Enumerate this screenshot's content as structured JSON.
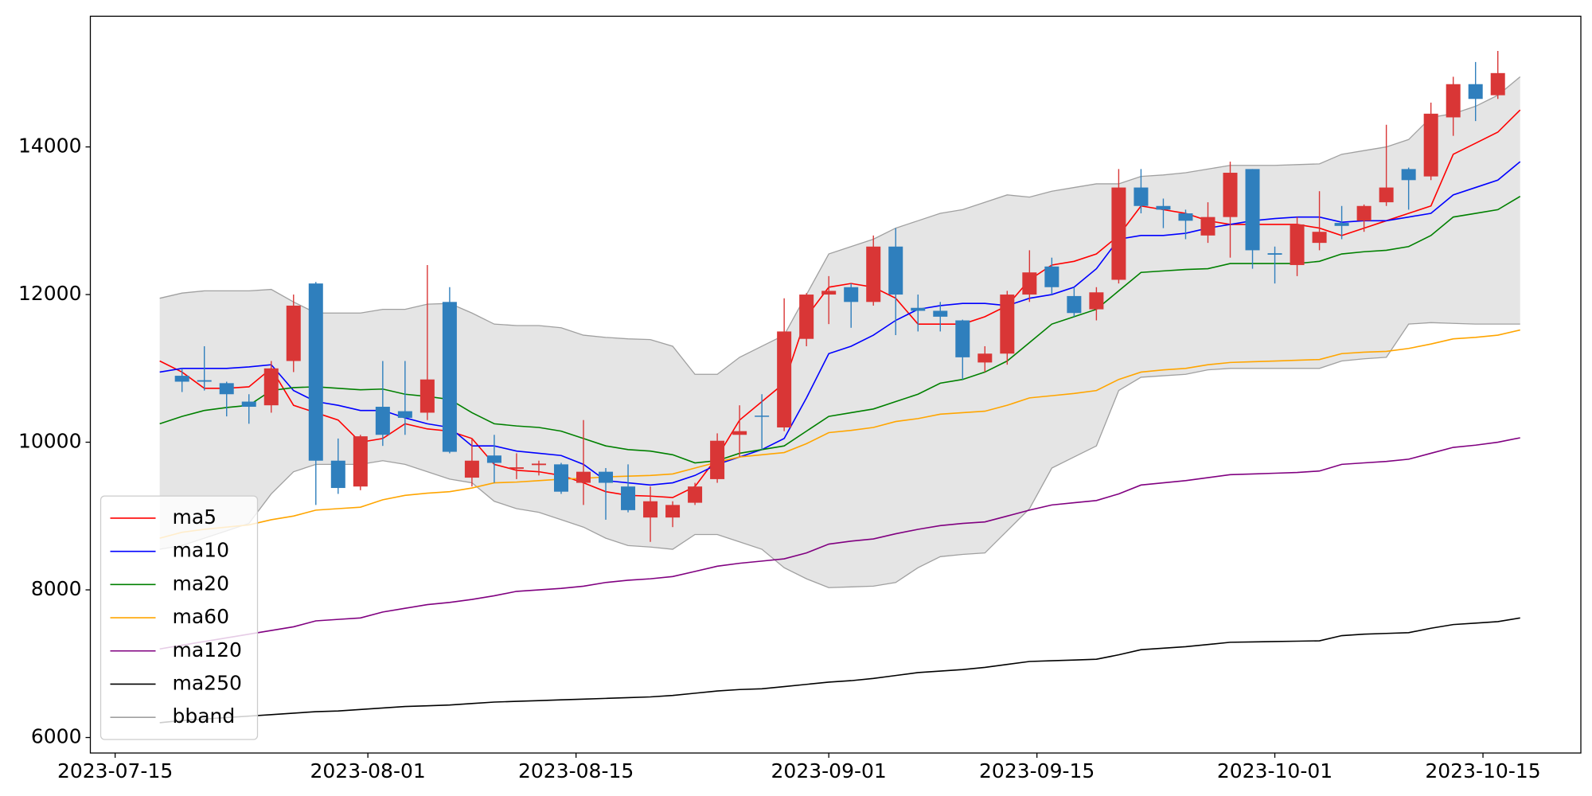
{
  "chart_data": {
    "type": "candlestick",
    "x": [
      "2023-07-18T00:00",
      "2023-07-19T12:00",
      "2023-07-21T00:00",
      "2023-07-22T12:00",
      "2023-07-24T00:00",
      "2023-07-25T12:00",
      "2023-07-27T00:00",
      "2023-07-28T12:00",
      "2023-07-30T00:00",
      "2023-07-31T12:00",
      "2023-08-02T00:00",
      "2023-08-03T12:00",
      "2023-08-05T00:00",
      "2023-08-06T12:00",
      "2023-08-08T00:00",
      "2023-08-09T12:00",
      "2023-08-11T00:00",
      "2023-08-12T12:00",
      "2023-08-14T00:00",
      "2023-08-15T12:00",
      "2023-08-17T00:00",
      "2023-08-18T12:00",
      "2023-08-20T00:00",
      "2023-08-21T12:00",
      "2023-08-23T00:00",
      "2023-08-24T12:00",
      "2023-08-26T00:00",
      "2023-08-27T12:00",
      "2023-08-29T00:00",
      "2023-08-30T12:00",
      "2023-09-01T00:00",
      "2023-09-02T12:00",
      "2023-09-04T00:00",
      "2023-09-05T12:00",
      "2023-09-07T00:00",
      "2023-09-08T12:00",
      "2023-09-10T00:00",
      "2023-09-11T12:00",
      "2023-09-13T00:00",
      "2023-09-14T12:00",
      "2023-09-16T00:00",
      "2023-09-17T12:00",
      "2023-09-19T00:00",
      "2023-09-20T12:00",
      "2023-09-22T00:00",
      "2023-09-23T12:00",
      "2023-09-25T00:00",
      "2023-09-26T12:00",
      "2023-09-28T00:00",
      "2023-09-29T12:00",
      "2023-10-01T00:00",
      "2023-10-02T12:00",
      "2023-10-04T00:00",
      "2023-10-05T12:00",
      "2023-10-07T00:00",
      "2023-10-08T12:00",
      "2023-10-10T00:00",
      "2023-10-11T12:00",
      "2023-10-13T00:00",
      "2023-10-14T12:00",
      "2023-10-16T00:00",
      "2023-10-17T12:00"
    ],
    "ohlc": {
      "up_color": "#d93636",
      "down_color": "#2f7fbd",
      "open": [
        null,
        10900,
        10840,
        10800,
        10550,
        10500,
        11100,
        12150,
        9750,
        9400,
        10480,
        10420,
        10400,
        11900,
        9520,
        9820,
        9640,
        9690,
        9700,
        9450,
        9600,
        9400,
        8980,
        8980,
        9180,
        9500,
        10100,
        10360,
        10200,
        11400,
        12000,
        12100,
        11900,
        12650,
        11820,
        11780,
        11650,
        11080,
        11200,
        12000,
        12380,
        11980,
        11800,
        12200,
        13450,
        13200,
        13100,
        12800,
        13050,
        13700,
        12560,
        12400,
        12700,
        12970,
        13000,
        13250,
        13700,
        13600,
        14400,
        14850,
        14700,
        null
      ],
      "high": [
        null,
        11000,
        11300,
        10820,
        10650,
        11100,
        12000,
        12170,
        10050,
        10100,
        11100,
        11100,
        12400,
        12100,
        10050,
        10100,
        9850,
        9750,
        9720,
        10300,
        9650,
        9700,
        9400,
        9200,
        9450,
        10120,
        10500,
        10650,
        11950,
        12020,
        12250,
        12150,
        12800,
        12900,
        12000,
        11900,
        11660,
        11300,
        12050,
        12600,
        12500,
        12100,
        12100,
        13700,
        13700,
        13300,
        13150,
        13250,
        13800,
        13700,
        12650,
        13050,
        13400,
        13200,
        13220,
        14300,
        13720,
        14600,
        14950,
        15150,
        15300,
        null
      ],
      "low": [
        null,
        10680,
        10700,
        10350,
        10250,
        10400,
        10950,
        9150,
        9300,
        9350,
        9950,
        10100,
        10300,
        9850,
        9400,
        9450,
        9500,
        9550,
        9300,
        9150,
        8950,
        9050,
        8650,
        8850,
        9150,
        9450,
        9800,
        9900,
        10150,
        11300,
        11600,
        11550,
        11850,
        11450,
        11500,
        11500,
        10850,
        10950,
        11050,
        11900,
        12000,
        11700,
        11650,
        12150,
        13100,
        12900,
        12750,
        12700,
        12500,
        12350,
        12150,
        12250,
        12600,
        12750,
        12850,
        13200,
        13150,
        13550,
        14150,
        14350,
        14650,
        null
      ],
      "close": [
        null,
        10820,
        10820,
        10650,
        10480,
        11000,
        11850,
        9750,
        9380,
        10080,
        10100,
        10330,
        10850,
        9870,
        9750,
        9720,
        9660,
        9710,
        9330,
        9600,
        9450,
        9080,
        9200,
        9150,
        9400,
        10020,
        10150,
        10350,
        11500,
        12000,
        12050,
        11900,
        12650,
        12000,
        11780,
        11700,
        11150,
        11200,
        12000,
        12300,
        12100,
        11750,
        12030,
        13450,
        13200,
        13150,
        13000,
        13050,
        13650,
        12600,
        12540,
        12950,
        12850,
        12930,
        13200,
        13450,
        13550,
        14450,
        14850,
        14650,
        15000,
        null
      ]
    },
    "series": [
      {
        "name": "ma5",
        "color": "#ff0000",
        "values": [
          11100,
          10950,
          10730,
          10730,
          10750,
          11000,
          10500,
          10400,
          10300,
          10000,
          10050,
          10250,
          10180,
          10150,
          10050,
          9700,
          9620,
          9600,
          9550,
          9450,
          9330,
          9280,
          9270,
          9250,
          9400,
          9800,
          10300,
          10550,
          10800,
          11700,
          12100,
          12150,
          12100,
          11950,
          11600,
          11600,
          11600,
          11700,
          11850,
          12200,
          12400,
          12450,
          12550,
          12800,
          13200,
          13150,
          13100,
          13000,
          12950,
          12950,
          12950,
          12950,
          12900,
          12800,
          12900,
          13000,
          13100,
          13200,
          13900,
          14050,
          14200,
          14500
        ]
      },
      {
        "name": "ma10",
        "color": "#0000ff",
        "values": [
          10950,
          11000,
          11000,
          11000,
          11020,
          11050,
          10700,
          10550,
          10500,
          10430,
          10430,
          10330,
          10250,
          10200,
          9950,
          9950,
          9880,
          9850,
          9820,
          9700,
          9480,
          9450,
          9420,
          9450,
          9550,
          9700,
          9800,
          9900,
          10050,
          10600,
          11200,
          11300,
          11450,
          11650,
          11800,
          11850,
          11880,
          11880,
          11850,
          11950,
          12000,
          12100,
          12350,
          12750,
          12800,
          12800,
          12830,
          12900,
          12950,
          13000,
          13030,
          13050,
          13050,
          12980,
          13000,
          13000,
          13050,
          13100,
          13350,
          13450,
          13550,
          13800
        ]
      },
      {
        "name": "ma20",
        "color": "#008000",
        "values": [
          10250,
          10350,
          10430,
          10470,
          10500,
          10700,
          10740,
          10750,
          10730,
          10710,
          10720,
          10650,
          10620,
          10580,
          10400,
          10250,
          10220,
          10200,
          10150,
          10050,
          9950,
          9900,
          9880,
          9830,
          9720,
          9750,
          9850,
          9900,
          9950,
          10150,
          10350,
          10400,
          10450,
          10550,
          10650,
          10800,
          10850,
          10950,
          11100,
          11350,
          11600,
          11700,
          11800,
          12050,
          12300,
          12320,
          12340,
          12350,
          12420,
          12420,
          12420,
          12420,
          12450,
          12550,
          12580,
          12600,
          12650,
          12800,
          13050,
          13100,
          13150,
          13330
        ]
      },
      {
        "name": "ma60",
        "color": "#ffa500",
        "values": [
          8700,
          8780,
          8820,
          8850,
          8880,
          8950,
          9000,
          9080,
          9100,
          9120,
          9220,
          9280,
          9310,
          9330,
          9380,
          9450,
          9460,
          9480,
          9500,
          9510,
          9530,
          9540,
          9550,
          9570,
          9650,
          9730,
          9800,
          9830,
          9860,
          9980,
          10130,
          10160,
          10200,
          10280,
          10320,
          10380,
          10400,
          10420,
          10500,
          10600,
          10630,
          10660,
          10700,
          10850,
          10950,
          10980,
          11000,
          11050,
          11080,
          11090,
          11100,
          11110,
          11120,
          11200,
          11220,
          11230,
          11270,
          11330,
          11400,
          11420,
          11450,
          11520
        ]
      },
      {
        "name": "ma120",
        "color": "#800080",
        "values": [
          7200,
          7250,
          7300,
          7350,
          7400,
          7450,
          7500,
          7580,
          7600,
          7620,
          7700,
          7750,
          7800,
          7830,
          7870,
          7920,
          7980,
          8000,
          8020,
          8050,
          8100,
          8130,
          8150,
          8180,
          8250,
          8320,
          8360,
          8390,
          8420,
          8500,
          8620,
          8660,
          8690,
          8760,
          8820,
          8870,
          8900,
          8920,
          9000,
          9080,
          9150,
          9180,
          9210,
          9300,
          9420,
          9450,
          9480,
          9520,
          9560,
          9570,
          9580,
          9590,
          9610,
          9700,
          9720,
          9740,
          9770,
          9850,
          9930,
          9960,
          10000,
          10060
        ]
      },
      {
        "name": "ma250",
        "color": "#000000",
        "values": [
          6200,
          6230,
          6250,
          6270,
          6290,
          6310,
          6330,
          6350,
          6360,
          6380,
          6400,
          6420,
          6430,
          6440,
          6460,
          6480,
          6490,
          6500,
          6510,
          6520,
          6530,
          6540,
          6550,
          6570,
          6600,
          6630,
          6650,
          6660,
          6690,
          6720,
          6750,
          6770,
          6800,
          6840,
          6880,
          6900,
          6920,
          6950,
          6990,
          7030,
          7040,
          7050,
          7060,
          7120,
          7190,
          7210,
          7230,
          7260,
          7290,
          7295,
          7300,
          7305,
          7310,
          7380,
          7400,
          7410,
          7420,
          7480,
          7530,
          7550,
          7570,
          7620
        ]
      }
    ],
    "bband": {
      "name": "bband",
      "color": "#a0a0a0",
      "fill": "#e5e5e5",
      "upper": [
        11950,
        12020,
        12050,
        12050,
        12050,
        12070,
        11900,
        11750,
        11750,
        11750,
        11800,
        11800,
        11870,
        11880,
        11750,
        11600,
        11580,
        11580,
        11550,
        11450,
        11420,
        11400,
        11390,
        11300,
        10920,
        10920,
        11150,
        11300,
        11450,
        12000,
        12550,
        12650,
        12750,
        12900,
        13000,
        13100,
        13150,
        13250,
        13350,
        13320,
        13400,
        13450,
        13500,
        13500,
        13600,
        13620,
        13650,
        13700,
        13750,
        13750,
        13750,
        13760,
        13770,
        13900,
        13950,
        14000,
        14100,
        14400,
        14450,
        14550,
        14700,
        14950
      ],
      "lower": [
        8550,
        8600,
        8700,
        8800,
        8900,
        9300,
        9600,
        9700,
        9700,
        9700,
        9750,
        9700,
        9600,
        9500,
        9450,
        9200,
        9100,
        9050,
        8950,
        8850,
        8700,
        8600,
        8580,
        8550,
        8750,
        8750,
        8650,
        8550,
        8300,
        8150,
        8030,
        8040,
        8050,
        8100,
        8300,
        8450,
        8480,
        8500,
        8800,
        9100,
        9650,
        9800,
        9950,
        10700,
        10880,
        10900,
        10920,
        10980,
        11000,
        11000,
        11000,
        11000,
        11000,
        11100,
        11130,
        11150,
        11600,
        11620,
        11610,
        11600,
        11600,
        11600
      ]
    },
    "xlim": [
      "2023-07-13T08:00",
      "2023-10-21T14:00"
    ],
    "xticks": [
      "2023-07-15",
      "2023-08-01",
      "2023-08-15",
      "2023-09-01",
      "2023-09-15",
      "2023-10-01",
      "2023-10-15"
    ],
    "ylim": [
      5790,
      15770
    ],
    "yticks": [
      6000,
      8000,
      10000,
      12000,
      14000
    ],
    "legend": "lower left"
  }
}
